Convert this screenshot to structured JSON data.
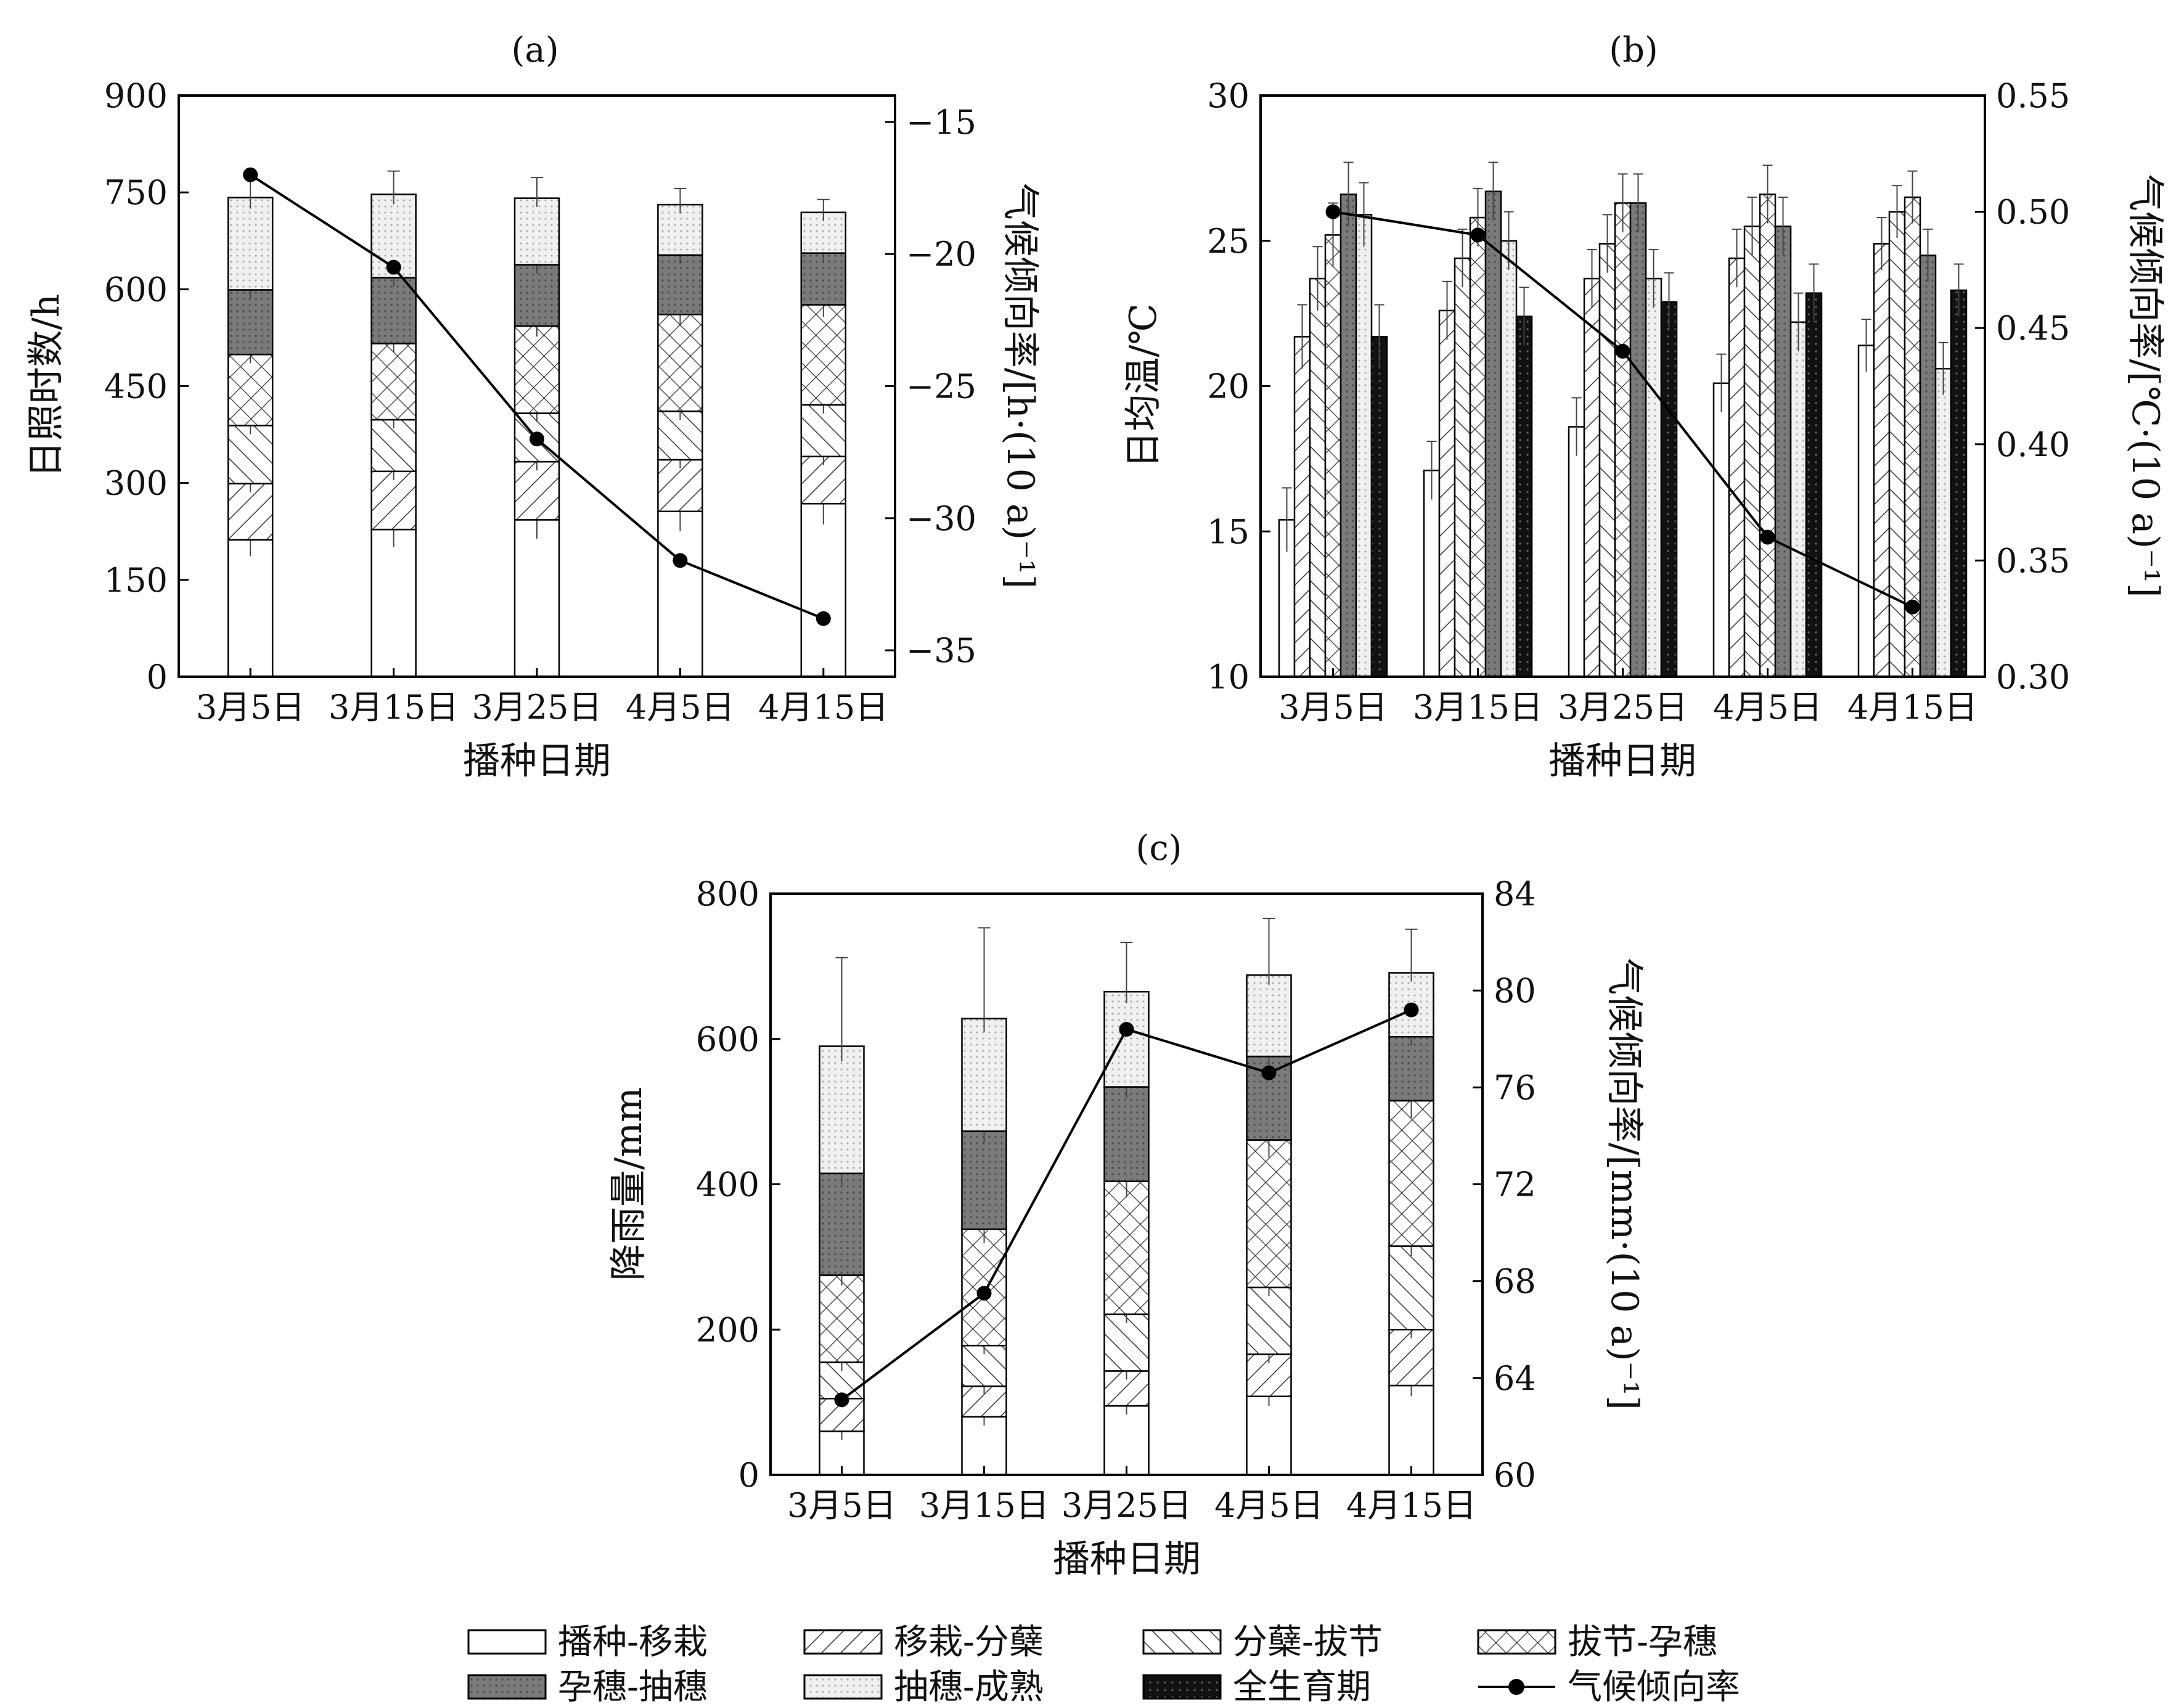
{
  "legend": {
    "stages": [
      "播种-移栽",
      "移栽-分蘖",
      "分蘖-拔节",
      "拔节-孕穗",
      "孕穗-抽穗",
      "抽穗-成熟"
    ],
    "whole": "全生育期",
    "trend": "气候倾向率"
  },
  "colors": {
    "dark": "#7a7a7a",
    "light": "#ececec",
    "whole": "#111111",
    "line": "#000000"
  },
  "chart_data": [
    {
      "id": "a",
      "type": "bar",
      "stacked": true,
      "title": "(a)",
      "xlabel": "播种日期",
      "ylabel": "日照时数/h",
      "y2label": "气候倾向率/[h·(10 a)⁻¹]",
      "categories": [
        "3月5日",
        "3月15日",
        "3月25日",
        "4月5日",
        "4月15日"
      ],
      "ylim": [
        0,
        900
      ],
      "yticks": [
        0,
        150,
        300,
        450,
        600,
        750,
        900
      ],
      "y2lim": [
        -36,
        -14
      ],
      "y2ticks": [
        -35,
        -30,
        -25,
        -20,
        -15
      ],
      "series": [
        {
          "name": "播种-移栽",
          "values": [
            212,
            228,
            243,
            256,
            268
          ]
        },
        {
          "name": "移栽-分蘖",
          "values": [
            87,
            90,
            90,
            80,
            73
          ]
        },
        {
          "name": "分蘖-拔节",
          "values": [
            90,
            80,
            75,
            75,
            80
          ]
        },
        {
          "name": "拔节-孕穗",
          "values": [
            110,
            118,
            135,
            150,
            155
          ]
        },
        {
          "name": "孕穗-抽穗",
          "values": [
            100,
            102,
            95,
            92,
            80
          ]
        },
        {
          "name": "抽穗-成熟",
          "values": [
            143,
            129,
            103,
            78,
            63
          ]
        }
      ],
      "errors_top": [
        40,
        36,
        32,
        25,
        20
      ],
      "trend": {
        "name": "气候倾向率",
        "values": [
          -17.0,
          -20.5,
          -27.0,
          -31.6,
          -33.8
        ]
      }
    },
    {
      "id": "b",
      "type": "bar",
      "stacked": false,
      "title": "(b)",
      "xlabel": "播种日期",
      "ylabel": "日均温/℃",
      "y2label": "气候倾向率/[℃·(10 a)⁻¹]",
      "categories": [
        "3月5日",
        "3月15日",
        "3月25日",
        "4月5日",
        "4月15日"
      ],
      "ylim": [
        10,
        30
      ],
      "yticks": [
        10,
        15,
        20,
        25,
        30
      ],
      "y2lim": [
        0.3,
        0.55
      ],
      "y2ticks": [
        0.3,
        0.35,
        0.4,
        0.45,
        0.5,
        0.55
      ],
      "series": [
        {
          "name": "播种-移栽",
          "values": [
            15.4,
            17.1,
            18.6,
            20.1,
            21.4
          ]
        },
        {
          "name": "移栽-分蘖",
          "values": [
            21.7,
            22.6,
            23.7,
            24.4,
            24.9
          ]
        },
        {
          "name": "分蘖-拔节",
          "values": [
            23.7,
            24.4,
            24.9,
            25.5,
            26.0
          ]
        },
        {
          "name": "拔节-孕穗",
          "values": [
            25.2,
            25.8,
            26.3,
            26.6,
            26.5
          ]
        },
        {
          "name": "孕穗-抽穗",
          "values": [
            26.6,
            26.7,
            26.3,
            25.5,
            24.5
          ]
        },
        {
          "name": "抽穗-成熟",
          "values": [
            25.9,
            25.0,
            23.7,
            22.2,
            20.6
          ]
        },
        {
          "name": "全生育期",
          "values": [
            21.7,
            22.4,
            22.9,
            23.2,
            23.3
          ]
        }
      ],
      "errors": [
        1.1,
        1.0,
        1.0,
        1.0,
        0.9
      ],
      "trend": {
        "name": "气候倾向率",
        "values": [
          0.5,
          0.49,
          0.44,
          0.36,
          0.33
        ]
      }
    },
    {
      "id": "c",
      "type": "bar",
      "stacked": true,
      "title": "(c)",
      "xlabel": "播种日期",
      "ylabel": "降雨量/mm",
      "y2label": "气候倾向率/[mm·(10 a)⁻¹]",
      "categories": [
        "3月5日",
        "3月15日",
        "3月25日",
        "4月5日",
        "4月15日"
      ],
      "ylim": [
        0,
        800
      ],
      "yticks": [
        0,
        200,
        400,
        600,
        800
      ],
      "y2lim": [
        60,
        84
      ],
      "y2ticks": [
        60,
        64,
        68,
        72,
        76,
        80,
        84
      ],
      "series": [
        {
          "name": "播种-移栽",
          "values": [
            60,
            80,
            95,
            108,
            123
          ]
        },
        {
          "name": "移栽-分蘖",
          "values": [
            45,
            42,
            48,
            58,
            77
          ]
        },
        {
          "name": "分蘖-拔节",
          "values": [
            50,
            56,
            78,
            92,
            115
          ]
        },
        {
          "name": "拔节-孕穗",
          "values": [
            120,
            160,
            183,
            203,
            200
          ]
        },
        {
          "name": "孕穗-抽穗",
          "values": [
            140,
            135,
            130,
            115,
            88
          ]
        },
        {
          "name": "抽穗-成熟",
          "values": [
            175,
            155,
            131,
            112,
            88
          ]
        }
      ],
      "errors_top": [
        122,
        125,
        68,
        78,
        60
      ],
      "trend": {
        "name": "气候倾向率",
        "values": [
          63.1,
          67.5,
          78.4,
          76.6,
          79.2
        ]
      }
    }
  ]
}
